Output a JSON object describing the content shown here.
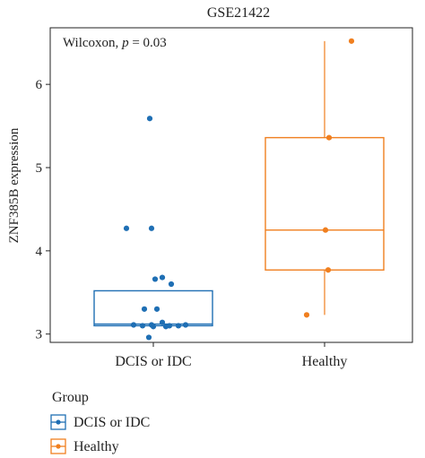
{
  "chart_data": {
    "type": "box",
    "title": "GSE21422",
    "annotation": {
      "prefix": "Wilcoxon, ",
      "p_symbol": "p",
      "suffix": " = 0.03"
    },
    "xlabel": "",
    "ylabel": "ZNF385B expression",
    "yticks": [
      3,
      4,
      5,
      6
    ],
    "ylim": [
      2.9,
      6.68
    ],
    "grid": false,
    "categories": [
      "DCIS or IDC",
      "Healthy"
    ],
    "legend": {
      "title": "Group",
      "placement": "bottom-left",
      "items": [
        "DCIS or IDC",
        "Healthy"
      ]
    },
    "series": [
      {
        "name": "DCIS or IDC",
        "color": "#1f6fb4",
        "box": {
          "q1": 3.1,
          "median": 3.12,
          "q3": 3.52,
          "whisker_low": 3.1,
          "whisker_high": 3.52
        },
        "points": [
          [
            -0.04,
            5.59
          ],
          [
            -0.3,
            4.27
          ],
          [
            -0.02,
            4.27
          ],
          [
            0.1,
            3.68
          ],
          [
            0.02,
            3.66
          ],
          [
            0.2,
            3.6
          ],
          [
            -0.1,
            3.3
          ],
          [
            0.04,
            3.3
          ],
          [
            -0.22,
            3.11
          ],
          [
            -0.12,
            3.1
          ],
          [
            -0.02,
            3.11
          ],
          [
            0.1,
            3.14
          ],
          [
            0.18,
            3.1
          ],
          [
            0.28,
            3.1
          ],
          [
            0.36,
            3.11
          ],
          [
            0.0,
            3.09
          ],
          [
            0.14,
            3.09
          ],
          [
            -0.05,
            2.96
          ]
        ]
      },
      {
        "name": "Healthy",
        "color": "#f07f1f",
        "box": {
          "q1": 3.77,
          "median": 4.25,
          "q3": 5.36,
          "whisker_low": 3.23,
          "whisker_high": 6.52
        },
        "points": [
          [
            0.3,
            6.52
          ],
          [
            0.05,
            5.36
          ],
          [
            0.01,
            4.25
          ],
          [
            0.04,
            3.77
          ],
          [
            -0.2,
            3.23
          ]
        ]
      }
    ]
  }
}
